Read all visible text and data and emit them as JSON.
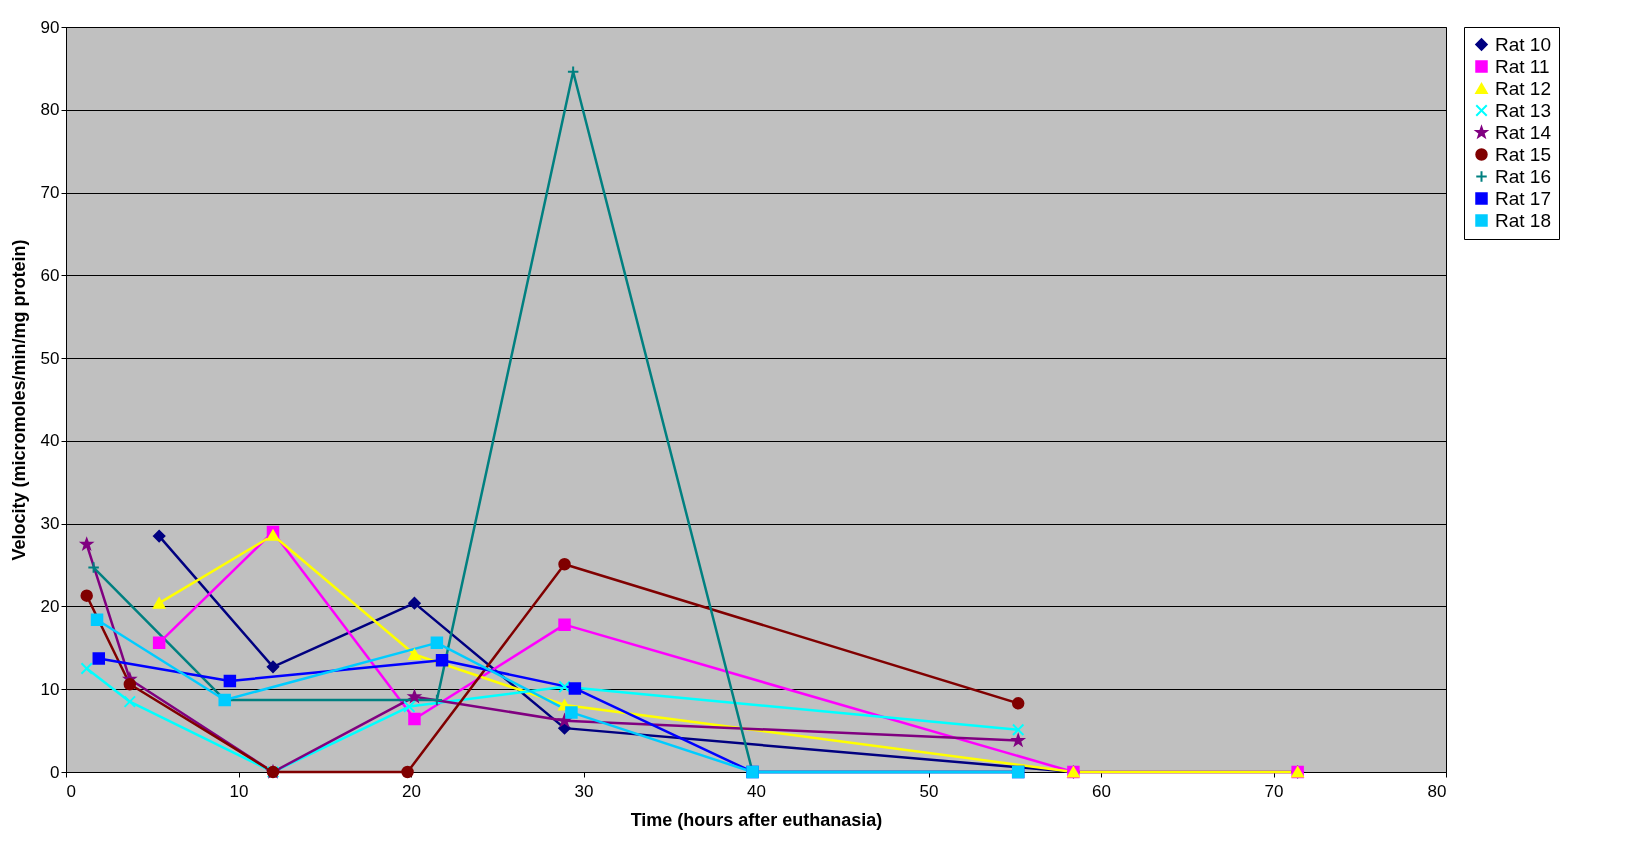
{
  "chart_data": {
    "type": "line",
    "xlabel": "Time (hours after euthanasia)",
    "ylabel": "Velocity (micromoles/min/mg protein)",
    "xlim": [
      0,
      80
    ],
    "xticks": [
      0,
      10,
      20,
      30,
      40,
      50,
      60,
      70,
      80
    ],
    "ylim": [
      0,
      90
    ],
    "yticks": [
      0,
      10,
      20,
      30,
      40,
      50,
      60,
      70,
      80,
      90
    ],
    "grid": "y",
    "legend": "right",
    "line_style": "solid",
    "series": [
      {
        "name": "Rat 10",
        "color": "#000080",
        "marker": "diamond",
        "x": [
          5.4,
          12,
          20.2,
          28.9,
          58.4,
          71.4
        ],
        "values": [
          28.5,
          12.7,
          20.4,
          5.3,
          0,
          0
        ]
      },
      {
        "name": "Rat 11",
        "color": "#ff00ff",
        "marker": "square",
        "x": [
          5.4,
          12,
          20.2,
          28.9,
          58.4,
          71.4
        ],
        "values": [
          15.6,
          29,
          6.4,
          17.8,
          0,
          0
        ]
      },
      {
        "name": "Rat 12",
        "color": "#ffff00",
        "marker": "triangle",
        "x": [
          5.4,
          12,
          20.2,
          28.9,
          58.4,
          71.4
        ],
        "values": [
          20.4,
          28.6,
          14.2,
          8.1,
          0,
          0
        ]
      },
      {
        "name": "Rat 13",
        "color": "#00ffff",
        "marker": "cross",
        "x": [
          1.2,
          3.7,
          12,
          19.9,
          28.9,
          55.2
        ],
        "values": [
          12.5,
          8.5,
          0,
          7.9,
          10.3,
          5.1
        ]
      },
      {
        "name": "Rat 14",
        "color": "#800080",
        "marker": "star",
        "x": [
          1.2,
          3.7,
          12,
          20.2,
          28.9,
          55.2
        ],
        "values": [
          27.5,
          11.2,
          0,
          9.1,
          6.2,
          3.8
        ]
      },
      {
        "name": "Rat 15",
        "color": "#800000",
        "marker": "circle",
        "x": [
          1.2,
          3.7,
          12,
          19.8,
          28.9,
          55.2
        ],
        "values": [
          21.3,
          10.6,
          0,
          0,
          25.1,
          8.3
        ]
      },
      {
        "name": "Rat 16",
        "color": "#008080",
        "marker": "plus",
        "x": [
          1.6,
          9.2,
          21.5,
          29.4,
          39.8,
          55.2
        ],
        "values": [
          24.7,
          8.7,
          8.7,
          84.6,
          0,
          0
        ]
      },
      {
        "name": "Rat 17",
        "color": "#0000ff",
        "marker": "square",
        "x": [
          1.9,
          9.5,
          21.8,
          29.5,
          39.8,
          55.2
        ],
        "values": [
          13.7,
          11.0,
          13.5,
          10.1,
          0,
          0
        ]
      },
      {
        "name": "Rat 18",
        "color": "#00ccff",
        "marker": "square",
        "x": [
          1.8,
          9.2,
          21.5,
          29.3,
          39.8,
          55.2
        ],
        "values": [
          18.4,
          8.7,
          15.6,
          7.2,
          0,
          0
        ]
      }
    ]
  }
}
